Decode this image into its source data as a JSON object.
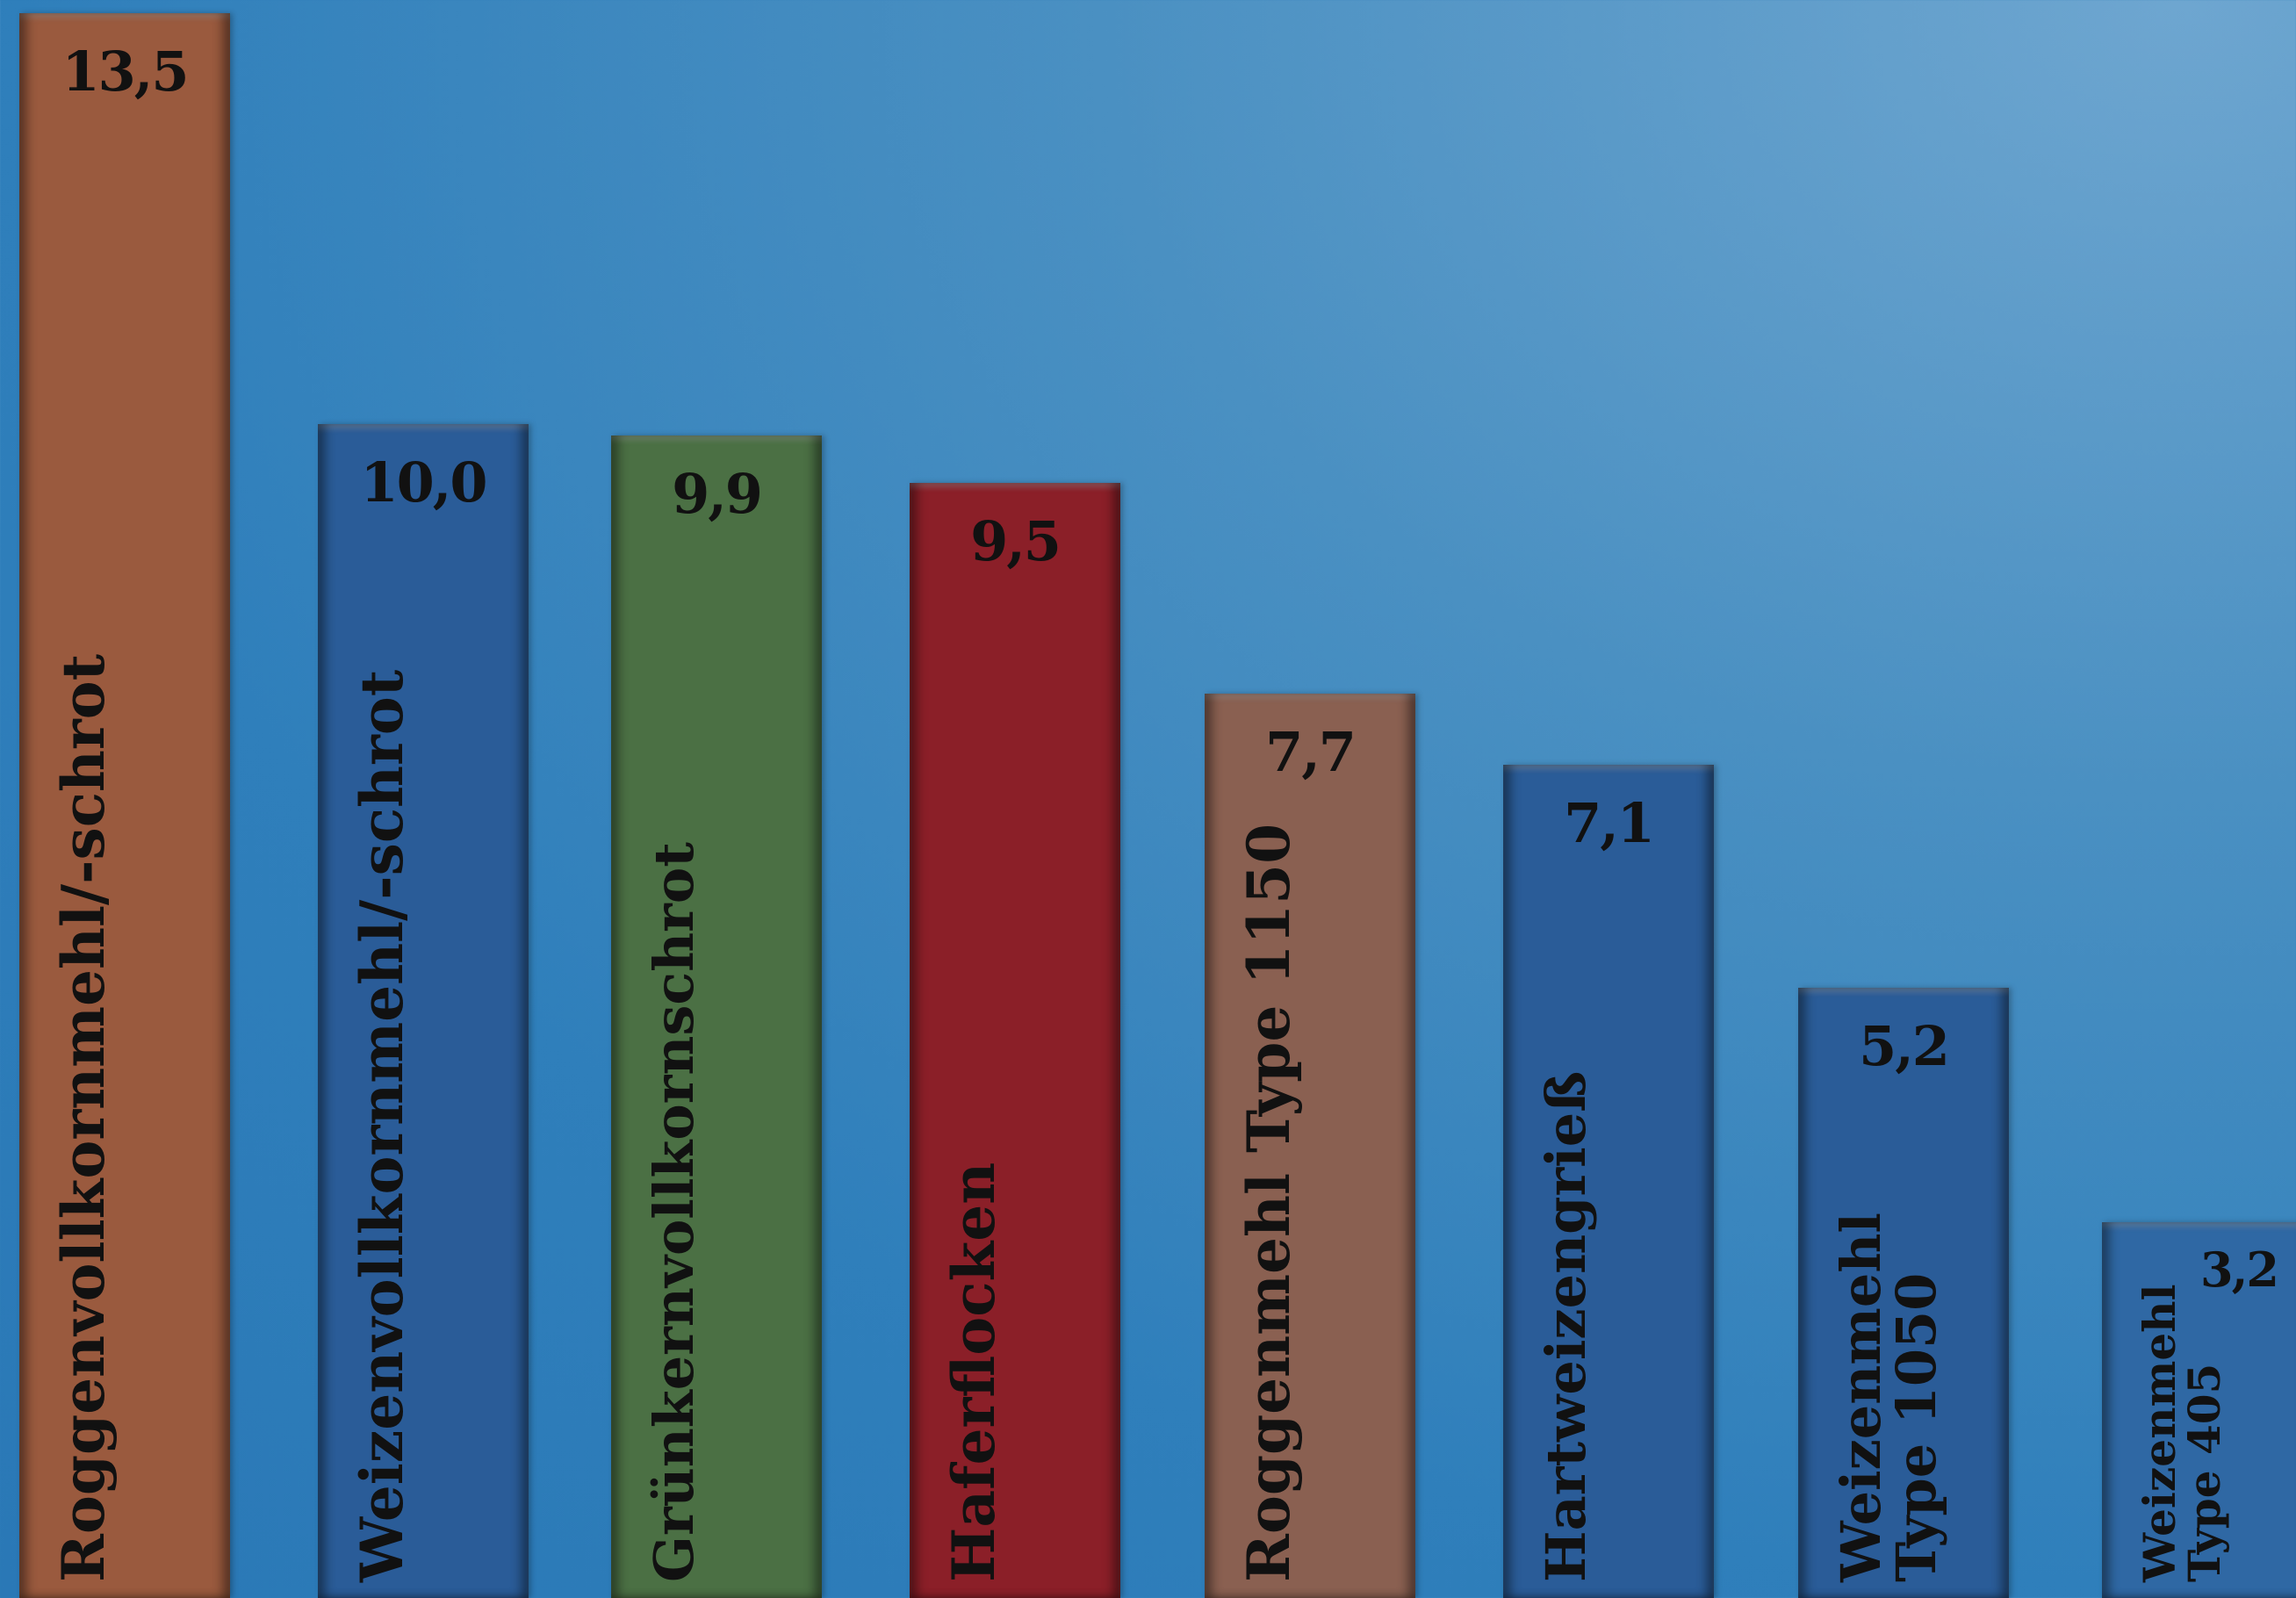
{
  "chart_data": {
    "type": "bar",
    "categories": [
      "Roggenvollkornmehl/-schrot",
      "Weizenvollkornmehl/-schrot",
      "Grünkernvollkornschrot",
      "Haferflocken",
      "Roggenmehl Type 1150",
      "Hartweizengrieß",
      "Weizenmehl\nType 1050",
      "Weizenmehl\nType 405"
    ],
    "values": [
      13.5,
      10.0,
      9.9,
      9.5,
      7.7,
      7.1,
      5.2,
      3.2
    ],
    "value_labels": [
      "13,5",
      "10,0",
      "9,9",
      "9,5",
      "7,7",
      "7,1",
      "5,2",
      "3,2"
    ],
    "colors": [
      "#9a5a3e",
      "#2a5c98",
      "#4b7044",
      "#8b1f28",
      "#8a6051",
      "#2a5c98",
      "#2a5c98",
      "#2f68a4"
    ],
    "title": "",
    "xlabel": "",
    "ylabel": "",
    "ylim": [
      0,
      13.5
    ],
    "grid": false,
    "legend": "none"
  }
}
